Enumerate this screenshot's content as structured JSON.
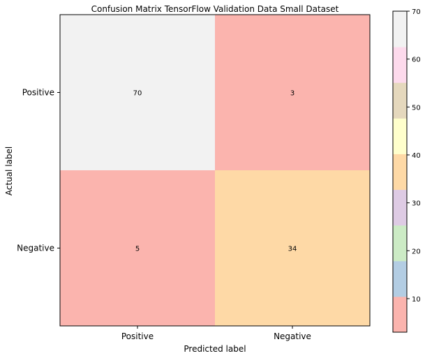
{
  "chart_data": {
    "type": "heatmap",
    "title": "Confusion Matrix TensorFlow Validation Data Small Dataset",
    "xlabel": "Predicted label",
    "ylabel": "Actual label",
    "x_categories": [
      "Positive",
      "Negative"
    ],
    "y_categories": [
      "Positive",
      "Negative"
    ],
    "values": [
      [
        70,
        3
      ],
      [
        5,
        34
      ]
    ],
    "colormap": "Pastel1",
    "colorbar": {
      "min": 3,
      "max": 70,
      "ticks": [
        10,
        20,
        30,
        40,
        50,
        60,
        70
      ],
      "colors": [
        "#fbb4ae",
        "#b3cde3",
        "#ccebc5",
        "#decbe4",
        "#fed9a6",
        "#ffffcc",
        "#e5d8bd",
        "#fddaec",
        "#f2f2f2"
      ]
    },
    "grid": false
  }
}
